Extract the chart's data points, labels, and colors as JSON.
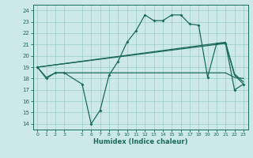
{
  "xlabel": "Humidex (Indice chaleur)",
  "bg_color": "#cce8e8",
  "grid_color": "#99cccc",
  "line_color": "#1a6b5a",
  "xlim": [
    -0.5,
    23.5
  ],
  "ylim": [
    13.5,
    24.5
  ],
  "xticks": [
    0,
    1,
    2,
    3,
    5,
    6,
    7,
    8,
    9,
    10,
    11,
    12,
    13,
    14,
    15,
    16,
    17,
    18,
    19,
    20,
    21,
    22,
    23
  ],
  "yticks": [
    14,
    15,
    16,
    17,
    18,
    19,
    20,
    21,
    22,
    23,
    24
  ],
  "curve_main": {
    "x": [
      0,
      1,
      2,
      3,
      5,
      6,
      7,
      8,
      9,
      10,
      11,
      12,
      13,
      14,
      15,
      16,
      17,
      18,
      19,
      20,
      21,
      22,
      23
    ],
    "y": [
      19,
      18,
      18.5,
      18.5,
      17.5,
      14,
      15.2,
      18.3,
      19.5,
      21.2,
      22.2,
      23.6,
      23.1,
      23.1,
      23.6,
      23.6,
      22.8,
      22.7,
      18.1,
      21.1,
      21.1,
      17.0,
      17.5
    ]
  },
  "curve_flat": {
    "x": [
      0,
      1,
      2,
      3,
      5,
      6,
      7,
      8,
      9,
      10,
      11,
      12,
      13,
      14,
      15,
      16,
      17,
      18,
      19,
      20,
      21,
      22,
      23
    ],
    "y": [
      19,
      18.1,
      18.5,
      18.5,
      18.5,
      18.5,
      18.5,
      18.5,
      18.5,
      18.5,
      18.5,
      18.5,
      18.5,
      18.5,
      18.5,
      18.5,
      18.5,
      18.5,
      18.5,
      18.5,
      18.5,
      18.1,
      18.0
    ]
  },
  "curve_diag1": {
    "x": [
      0,
      21,
      22,
      23
    ],
    "y": [
      19,
      21.1,
      18.3,
      17.5
    ]
  },
  "curve_diag2": {
    "x": [
      0,
      21,
      22,
      23
    ],
    "y": [
      19,
      21.2,
      18.4,
      17.7
    ]
  }
}
